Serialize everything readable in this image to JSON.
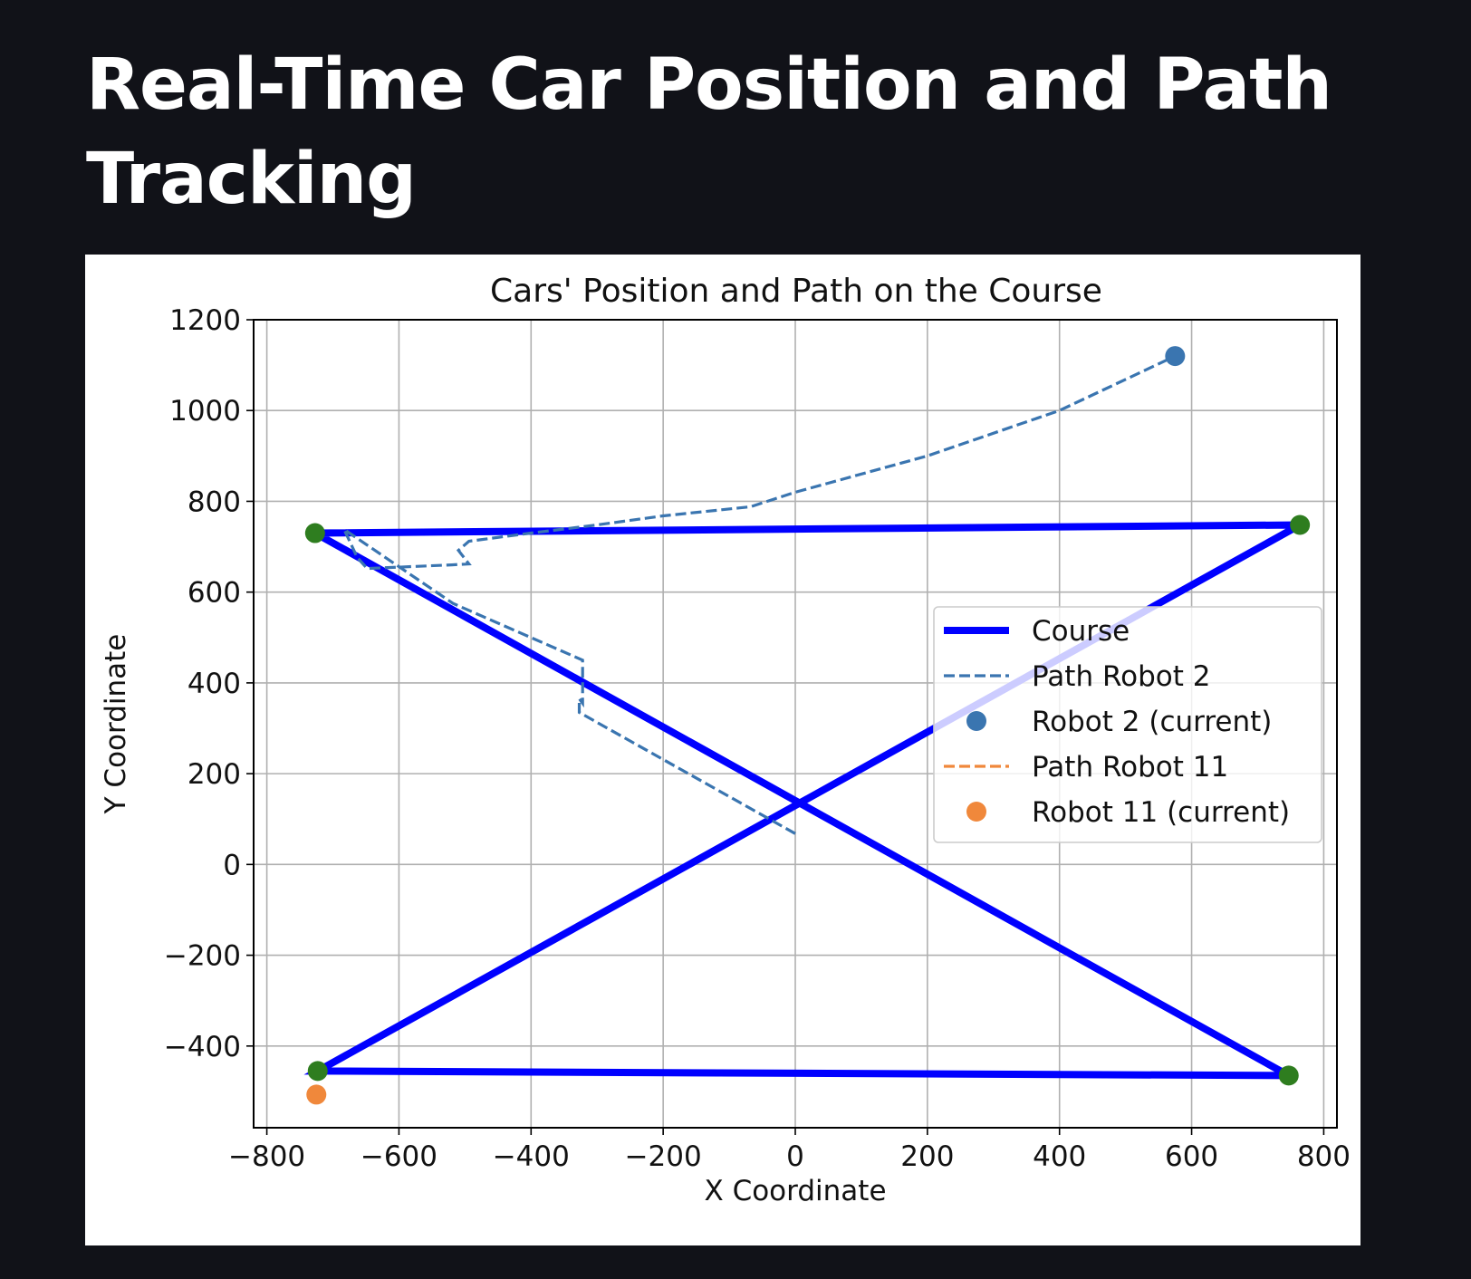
{
  "page": {
    "title": "Real-Time Car Position and Path Tracking"
  },
  "chart_data": {
    "type": "line",
    "title": "Cars' Position and Path on the Course",
    "xlabel": "X Coordinate",
    "ylabel": "Y Coordinate",
    "xlim": [
      -820,
      820
    ],
    "ylim": [
      -580,
      1200
    ],
    "xticks": [
      -800,
      -600,
      -400,
      -200,
      0,
      200,
      400,
      600,
      800
    ],
    "yticks": [
      -400,
      -200,
      0,
      200,
      400,
      600,
      800,
      1000,
      1200
    ],
    "xtick_labels": [
      "−800",
      "−600",
      "−400",
      "−200",
      "0",
      "200",
      "400",
      "600",
      "800"
    ],
    "ytick_labels": [
      "−400",
      "−200",
      "0",
      "200",
      "400",
      "600",
      "800",
      "1000",
      "1200"
    ],
    "grid": true,
    "legend_position": "center-right",
    "course": {
      "name": "Course",
      "color": "#0000ff",
      "points": [
        [
          -727,
          730
        ],
        [
          764,
          748
        ],
        [
          -723,
          -455
        ],
        [
          747,
          -465
        ],
        [
          -727,
          730
        ]
      ]
    },
    "waypoints": {
      "color": "#2e7d1f",
      "points": [
        [
          -727,
          730
        ],
        [
          764,
          748
        ],
        [
          -723,
          -455
        ],
        [
          747,
          -465
        ]
      ]
    },
    "series": [
      {
        "name": "Path Robot 2",
        "color": "#3a75b0",
        "style": "dashed",
        "points": [
          [
            0,
            68
          ],
          [
            -327,
            335
          ],
          [
            -327,
            365
          ],
          [
            -322,
            355
          ],
          [
            -322,
            450
          ],
          [
            -518,
            575
          ],
          [
            -683,
            738
          ],
          [
            -663,
            676
          ],
          [
            -648,
            652
          ],
          [
            -520,
            660
          ],
          [
            -494,
            662
          ],
          [
            -510,
            692
          ],
          [
            -494,
            712
          ],
          [
            -400,
            730
          ],
          [
            -300,
            748
          ],
          [
            -200,
            768
          ],
          [
            -68,
            788
          ],
          [
            0,
            820
          ],
          [
            200,
            900
          ],
          [
            400,
            1000
          ],
          [
            575,
            1120
          ]
        ]
      },
      {
        "name": "Path Robot 11",
        "color": "#f0883b",
        "style": "dashed",
        "points": []
      }
    ],
    "current_points": [
      {
        "name": "Robot 2 (current)",
        "color": "#3a75b0",
        "x": 575,
        "y": 1120
      },
      {
        "name": "Robot 11 (current)",
        "color": "#f0883b",
        "x": -725,
        "y": -507
      }
    ],
    "legend": [
      {
        "label": "Course",
        "kind": "thick-line",
        "color": "#0000ff"
      },
      {
        "label": "Path Robot 2",
        "kind": "dashed-line",
        "color": "#3a75b0"
      },
      {
        "label": "Robot 2 (current)",
        "kind": "dot",
        "color": "#3a75b0"
      },
      {
        "label": "Path Robot 11",
        "kind": "dashed-line",
        "color": "#f0883b"
      },
      {
        "label": "Robot 11 (current)",
        "kind": "dot",
        "color": "#f0883b"
      }
    ]
  }
}
